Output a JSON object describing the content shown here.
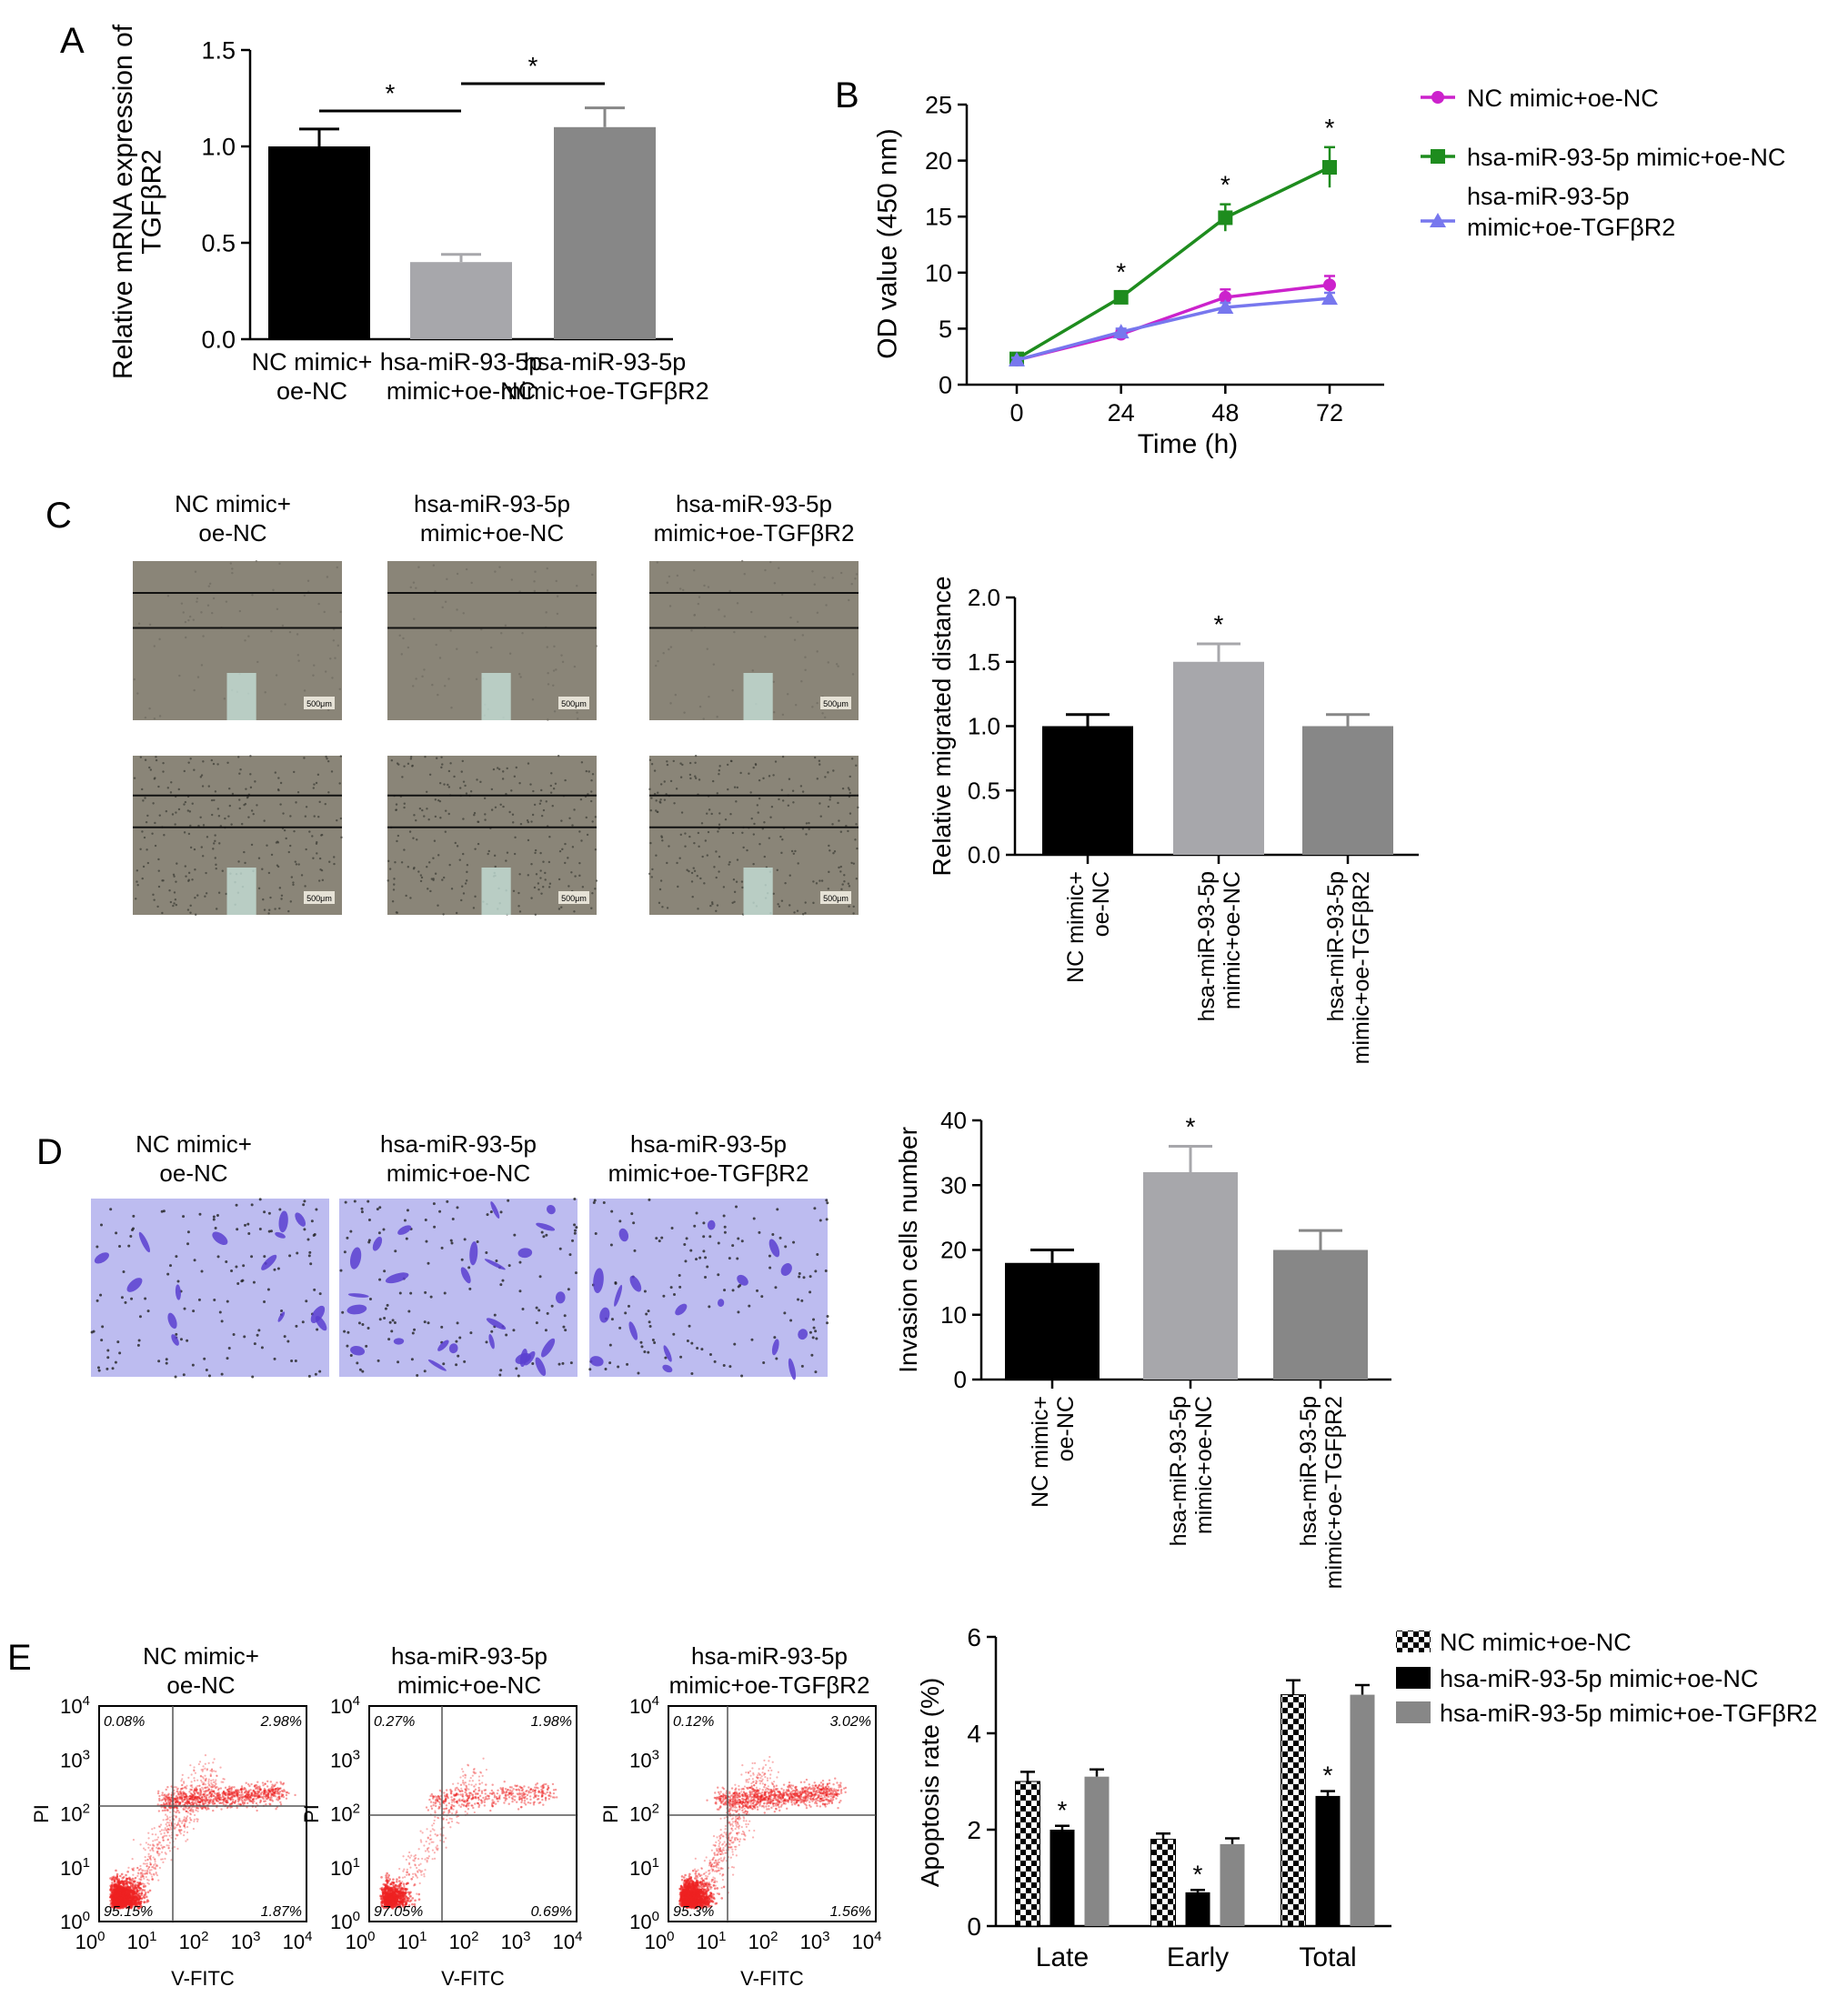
{
  "panels": {
    "A": {
      "letter": "A"
    },
    "B": {
      "letter": "B"
    },
    "C": {
      "letter": "C"
    },
    "D": {
      "letter": "D"
    },
    "E": {
      "letter": "E"
    }
  },
  "colors": {
    "black": "#000000",
    "light_gray": "#a7a7ab",
    "mid_gray": "#878787",
    "line_magenta": "#cc22cc",
    "line_green": "#1e8c1e",
    "line_blue": "#7777ee",
    "micro_bg": "#8a8578",
    "transwell_bg": "#bdbcf0",
    "cell_purple": "#5a3fd0",
    "flow_red": "#ee2222"
  },
  "chart_data": [
    {
      "id": "A",
      "type": "bar",
      "categories": [
        [
          "NC mimic+",
          "oe-NC"
        ],
        [
          "hsa-miR-93-5p",
          "mimic+oe-NC"
        ],
        [
          "hsa-miR-93-5p",
          "mimic+oe-TGFβR2"
        ]
      ],
      "values": [
        1.0,
        0.4,
        1.1
      ],
      "errors": [
        0.09,
        0.04,
        0.1
      ],
      "ylabel": [
        "Relative mRNA expression of",
        "TGFβR2"
      ],
      "ylim": [
        0,
        1.5
      ],
      "yticks": [
        "0.0",
        "0.5",
        "1.0",
        "1.5"
      ],
      "significance": [
        {
          "from": 0,
          "to": 1,
          "label": "*"
        },
        {
          "from": 1,
          "to": 2,
          "label": "*"
        }
      ]
    },
    {
      "id": "B",
      "type": "line",
      "x": [
        0,
        24,
        48,
        72
      ],
      "xlabel": "Time (h)",
      "ylabel": "OD value (450 nm)",
      "ylim": [
        0,
        25
      ],
      "yticks": [
        "0",
        "5",
        "10",
        "15",
        "20",
        "25"
      ],
      "xticks": [
        "0",
        "24",
        "48",
        "72"
      ],
      "series": [
        {
          "name": [
            "NC mimic+oe-NC"
          ],
          "values": [
            2.2,
            4.5,
            7.8,
            8.9
          ],
          "errors": [
            0.2,
            0.3,
            0.7,
            0.8
          ],
          "marker": "circle"
        },
        {
          "name": [
            "hsa-miR-93-5p mimic+oe-NC"
          ],
          "values": [
            2.3,
            7.8,
            14.9,
            19.4
          ],
          "errors": [
            0.2,
            0.5,
            1.2,
            1.8
          ],
          "marker": "square"
        },
        {
          "name": [
            "hsa-miR-93-5p",
            "mimic+oe-TGFβR2"
          ],
          "values": [
            2.2,
            4.7,
            6.9,
            7.7
          ],
          "errors": [
            0.2,
            0.3,
            0.4,
            0.5
          ],
          "marker": "triangle"
        }
      ],
      "annotations": [
        "*",
        "*",
        "*"
      ],
      "legend": "right"
    },
    {
      "id": "C",
      "type": "bar",
      "categories": [
        [
          "NC mimic+",
          "oe-NC"
        ],
        [
          "hsa-miR-93-5p",
          "mimic+oe-NC"
        ],
        [
          "hsa-miR-93-5p",
          "mimic+oe-TGFβR2"
        ]
      ],
      "values": [
        1.0,
        1.5,
        1.0
      ],
      "errors": [
        0.09,
        0.14,
        0.09
      ],
      "ylabel": "Relative migrated distance",
      "ylim": [
        0,
        2.0
      ],
      "yticks": [
        "0.0",
        "0.5",
        "1.0",
        "1.5",
        "2.0"
      ],
      "annotations": [
        "",
        "*",
        ""
      ]
    },
    {
      "id": "D",
      "type": "bar",
      "categories": [
        [
          "NC mimic+",
          "oe-NC"
        ],
        [
          "hsa-miR-93-5p",
          "mimic+oe-NC"
        ],
        [
          "hsa-miR-93-5p",
          "mimic+oe-TGFβR2"
        ]
      ],
      "values": [
        18,
        32,
        20
      ],
      "errors": [
        2,
        4,
        3
      ],
      "ylabel": "Invasion cells number",
      "ylim": [
        0,
        40
      ],
      "yticks": [
        "0",
        "10",
        "20",
        "30",
        "40"
      ],
      "annotations": [
        "",
        "*",
        ""
      ]
    },
    {
      "id": "E",
      "type": "bar",
      "categories": [
        "Late",
        "Early",
        "Total"
      ],
      "series": [
        {
          "name": "NC mimic+oe-NC",
          "values": [
            3.0,
            1.8,
            4.8
          ],
          "errors": [
            0.2,
            0.12,
            0.3
          ],
          "pattern": "checker"
        },
        {
          "name": "hsa-miR-93-5p mimic+oe-NC",
          "values": [
            2.0,
            0.7,
            2.7
          ],
          "errors": [
            0.08,
            0.05,
            0.1
          ],
          "pattern": "solid-black"
        },
        {
          "name": "hsa-miR-93-5p mimic+oe-TGFβR2",
          "values": [
            3.1,
            1.7,
            4.8
          ],
          "errors": [
            0.15,
            0.12,
            0.2
          ],
          "pattern": "solid-gray"
        }
      ],
      "ylabel": "Apoptosis rate (%)",
      "ylim": [
        0,
        6
      ],
      "yticks": [
        "0",
        "2",
        "4",
        "6"
      ],
      "annotations": [
        [
          "",
          "*",
          ""
        ],
        [
          "",
          "*",
          ""
        ],
        [
          "",
          "*",
          ""
        ]
      ],
      "legend": "top-right"
    }
  ],
  "image_panels": {
    "C": {
      "columns": [
        {
          "title": [
            "NC mimic+",
            "oe-NC"
          ],
          "scale_label": "500μm"
        },
        {
          "title": [
            "hsa-miR-93-5p",
            "mimic+oe-NC"
          ],
          "scale_label": "500μm"
        },
        {
          "title": [
            "hsa-miR-93-5p",
            "mimic+oe-TGFβR2"
          ],
          "scale_label": "500μm"
        }
      ]
    },
    "D": {
      "columns": [
        {
          "title": [
            "NC mimic+",
            "oe-NC"
          ]
        },
        {
          "title": [
            "hsa-miR-93-5p",
            "mimic+oe-NC"
          ]
        },
        {
          "title": [
            "hsa-miR-93-5p",
            "mimic+oe-TGFβR2"
          ]
        }
      ]
    },
    "E": {
      "xlabel": "V-FITC",
      "ylabel": "PI",
      "tick_exponents": [
        "0",
        "1",
        "2",
        "3",
        "4"
      ],
      "tick_base": "10",
      "plots": [
        {
          "title": [
            "NC mimic+",
            "oe-NC"
          ],
          "quadrants": {
            "ul": "0.08%",
            "ur": "2.98%",
            "ll": "95.15%",
            "lr": "1.87%"
          },
          "density": 1.0
        },
        {
          "title": [
            "hsa-miR-93-5p",
            "mimic+oe-NC"
          ],
          "quadrants": {
            "ul": "0.27%",
            "ur": "1.98%",
            "ll": "97.05%",
            "lr": "0.69%"
          },
          "density": 0.45
        },
        {
          "title": [
            "hsa-miR-93-5p",
            "mimic+oe-TGFβR2"
          ],
          "quadrants": {
            "ul": "0.12%",
            "ur": "3.02%",
            "ll": "95.3%",
            "lr": "1.56%"
          },
          "density": 1.0
        }
      ]
    }
  }
}
